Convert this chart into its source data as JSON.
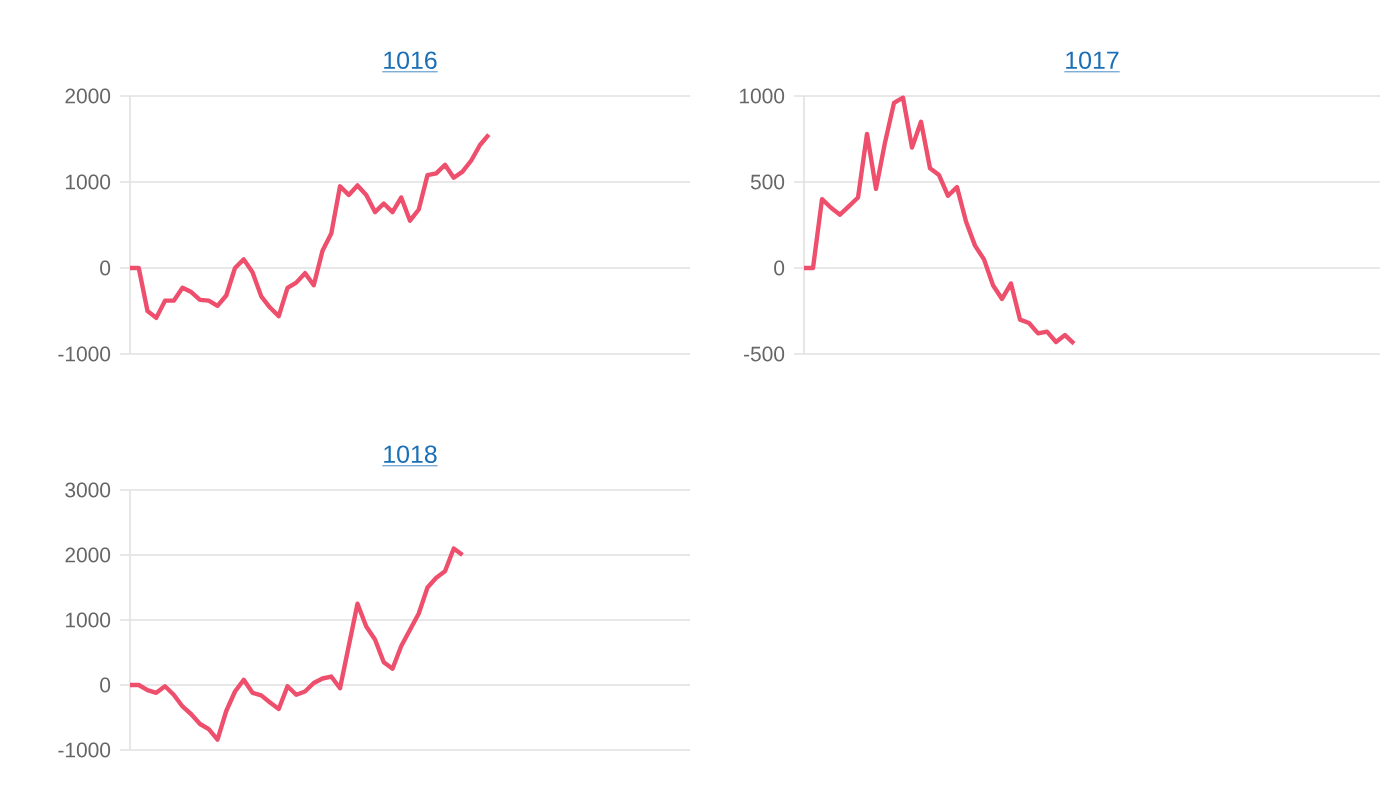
{
  "chart_data": [
    {
      "type": "line",
      "title": "1016",
      "categories": [
        null,
        null,
        null,
        null,
        null,
        null,
        null,
        null,
        null,
        null,
        null,
        null,
        null,
        null,
        null,
        null,
        null,
        null,
        null,
        null,
        null,
        null,
        null,
        null,
        null,
        null,
        null,
        null,
        null,
        null,
        null,
        null,
        null,
        null,
        null,
        null,
        null,
        null,
        null,
        null,
        null,
        null,
        null,
        null,
        null,
        null,
        null,
        null,
        null,
        null,
        null,
        null,
        null,
        null,
        null,
        null,
        null,
        null,
        null,
        null,
        null,
        null,
        null,
        null,
        null
      ],
      "series": [
        {
          "color": "#ee4f6c",
          "values": [
            0,
            0,
            -500,
            -580,
            -380,
            -380,
            -230,
            -280,
            -370,
            -380,
            -440,
            -320,
            0,
            100,
            -50,
            -330,
            -460,
            -560,
            -230,
            -170,
            -60,
            -200,
            200,
            400,
            950,
            850,
            960,
            850,
            650,
            750,
            650,
            820,
            550,
            680,
            1080,
            1100,
            1200,
            1050,
            1120,
            1250,
            1430,
            1550,
            null,
            null,
            null,
            null,
            null,
            null,
            null,
            null,
            null,
            null,
            null,
            null,
            null,
            null,
            null,
            null,
            null,
            null,
            null,
            null,
            null,
            null,
            null
          ]
        }
      ],
      "ylim": [
        -1000,
        2000
      ],
      "yticks": [
        -1000,
        0,
        1000,
        2000
      ],
      "grid": "y",
      "tick_labels": "y"
    },
    {
      "type": "line",
      "title": "1017",
      "categories": [
        null,
        null,
        null,
        null,
        null,
        null,
        null,
        null,
        null,
        null,
        null,
        null,
        null,
        null,
        null,
        null,
        null,
        null,
        null,
        null,
        null,
        null,
        null,
        null,
        null,
        null,
        null,
        null,
        null,
        null,
        null,
        null,
        null,
        null,
        null,
        null,
        null,
        null,
        null,
        null,
        null,
        null,
        null,
        null,
        null,
        null,
        null,
        null,
        null,
        null,
        null,
        null,
        null,
        null,
        null,
        null,
        null,
        null,
        null,
        null,
        null,
        null,
        null,
        null,
        null
      ],
      "series": [
        {
          "color": "#ee4f6c",
          "values": [
            0,
            0,
            400,
            350,
            310,
            360,
            410,
            780,
            460,
            730,
            960,
            990,
            700,
            850,
            580,
            540,
            420,
            470,
            270,
            130,
            50,
            -100,
            -180,
            -90,
            -300,
            -320,
            -380,
            -370,
            -430,
            -390,
            -440,
            null,
            null,
            null,
            null,
            null,
            null,
            null,
            null,
            null,
            null,
            null,
            null,
            null,
            null,
            null,
            null,
            null,
            null,
            null,
            null,
            null,
            null,
            null,
            null,
            null,
            null,
            null,
            null,
            null,
            null,
            null,
            null,
            null,
            null
          ]
        }
      ],
      "ylim": [
        -500,
        1000
      ],
      "yticks": [
        -500,
        0,
        500,
        1000
      ],
      "grid": "y",
      "tick_labels": "y"
    },
    {
      "type": "line",
      "title": "1018",
      "categories": [
        null,
        null,
        null,
        null,
        null,
        null,
        null,
        null,
        null,
        null,
        null,
        null,
        null,
        null,
        null,
        null,
        null,
        null,
        null,
        null,
        null,
        null,
        null,
        null,
        null,
        null,
        null,
        null,
        null,
        null,
        null,
        null,
        null,
        null,
        null,
        null,
        null,
        null,
        null,
        null,
        null,
        null,
        null,
        null,
        null,
        null,
        null,
        null,
        null,
        null,
        null,
        null,
        null,
        null,
        null,
        null,
        null,
        null,
        null,
        null,
        null,
        null,
        null,
        null,
        null
      ],
      "series": [
        {
          "color": "#ee4f6c",
          "values": [
            0,
            0,
            -80,
            -120,
            -20,
            -150,
            -330,
            -450,
            -600,
            -680,
            -840,
            -400,
            -100,
            80,
            -120,
            -160,
            -270,
            -370,
            -20,
            -150,
            -100,
            30,
            100,
            130,
            -50,
            600,
            1250,
            900,
            700,
            350,
            250,
            600,
            850,
            1100,
            1500,
            1650,
            1750,
            2100,
            2000,
            null,
            null,
            null,
            null,
            null,
            null,
            null,
            null,
            null,
            null,
            null,
            null,
            null,
            null,
            null,
            null,
            null,
            null,
            null,
            null,
            null,
            null,
            null,
            null,
            null,
            null
          ]
        }
      ],
      "ylim": [
        -1000,
        3000
      ],
      "yticks": [
        -1000,
        0,
        1000,
        2000,
        3000
      ],
      "grid": "y",
      "tick_labels": "y"
    }
  ]
}
